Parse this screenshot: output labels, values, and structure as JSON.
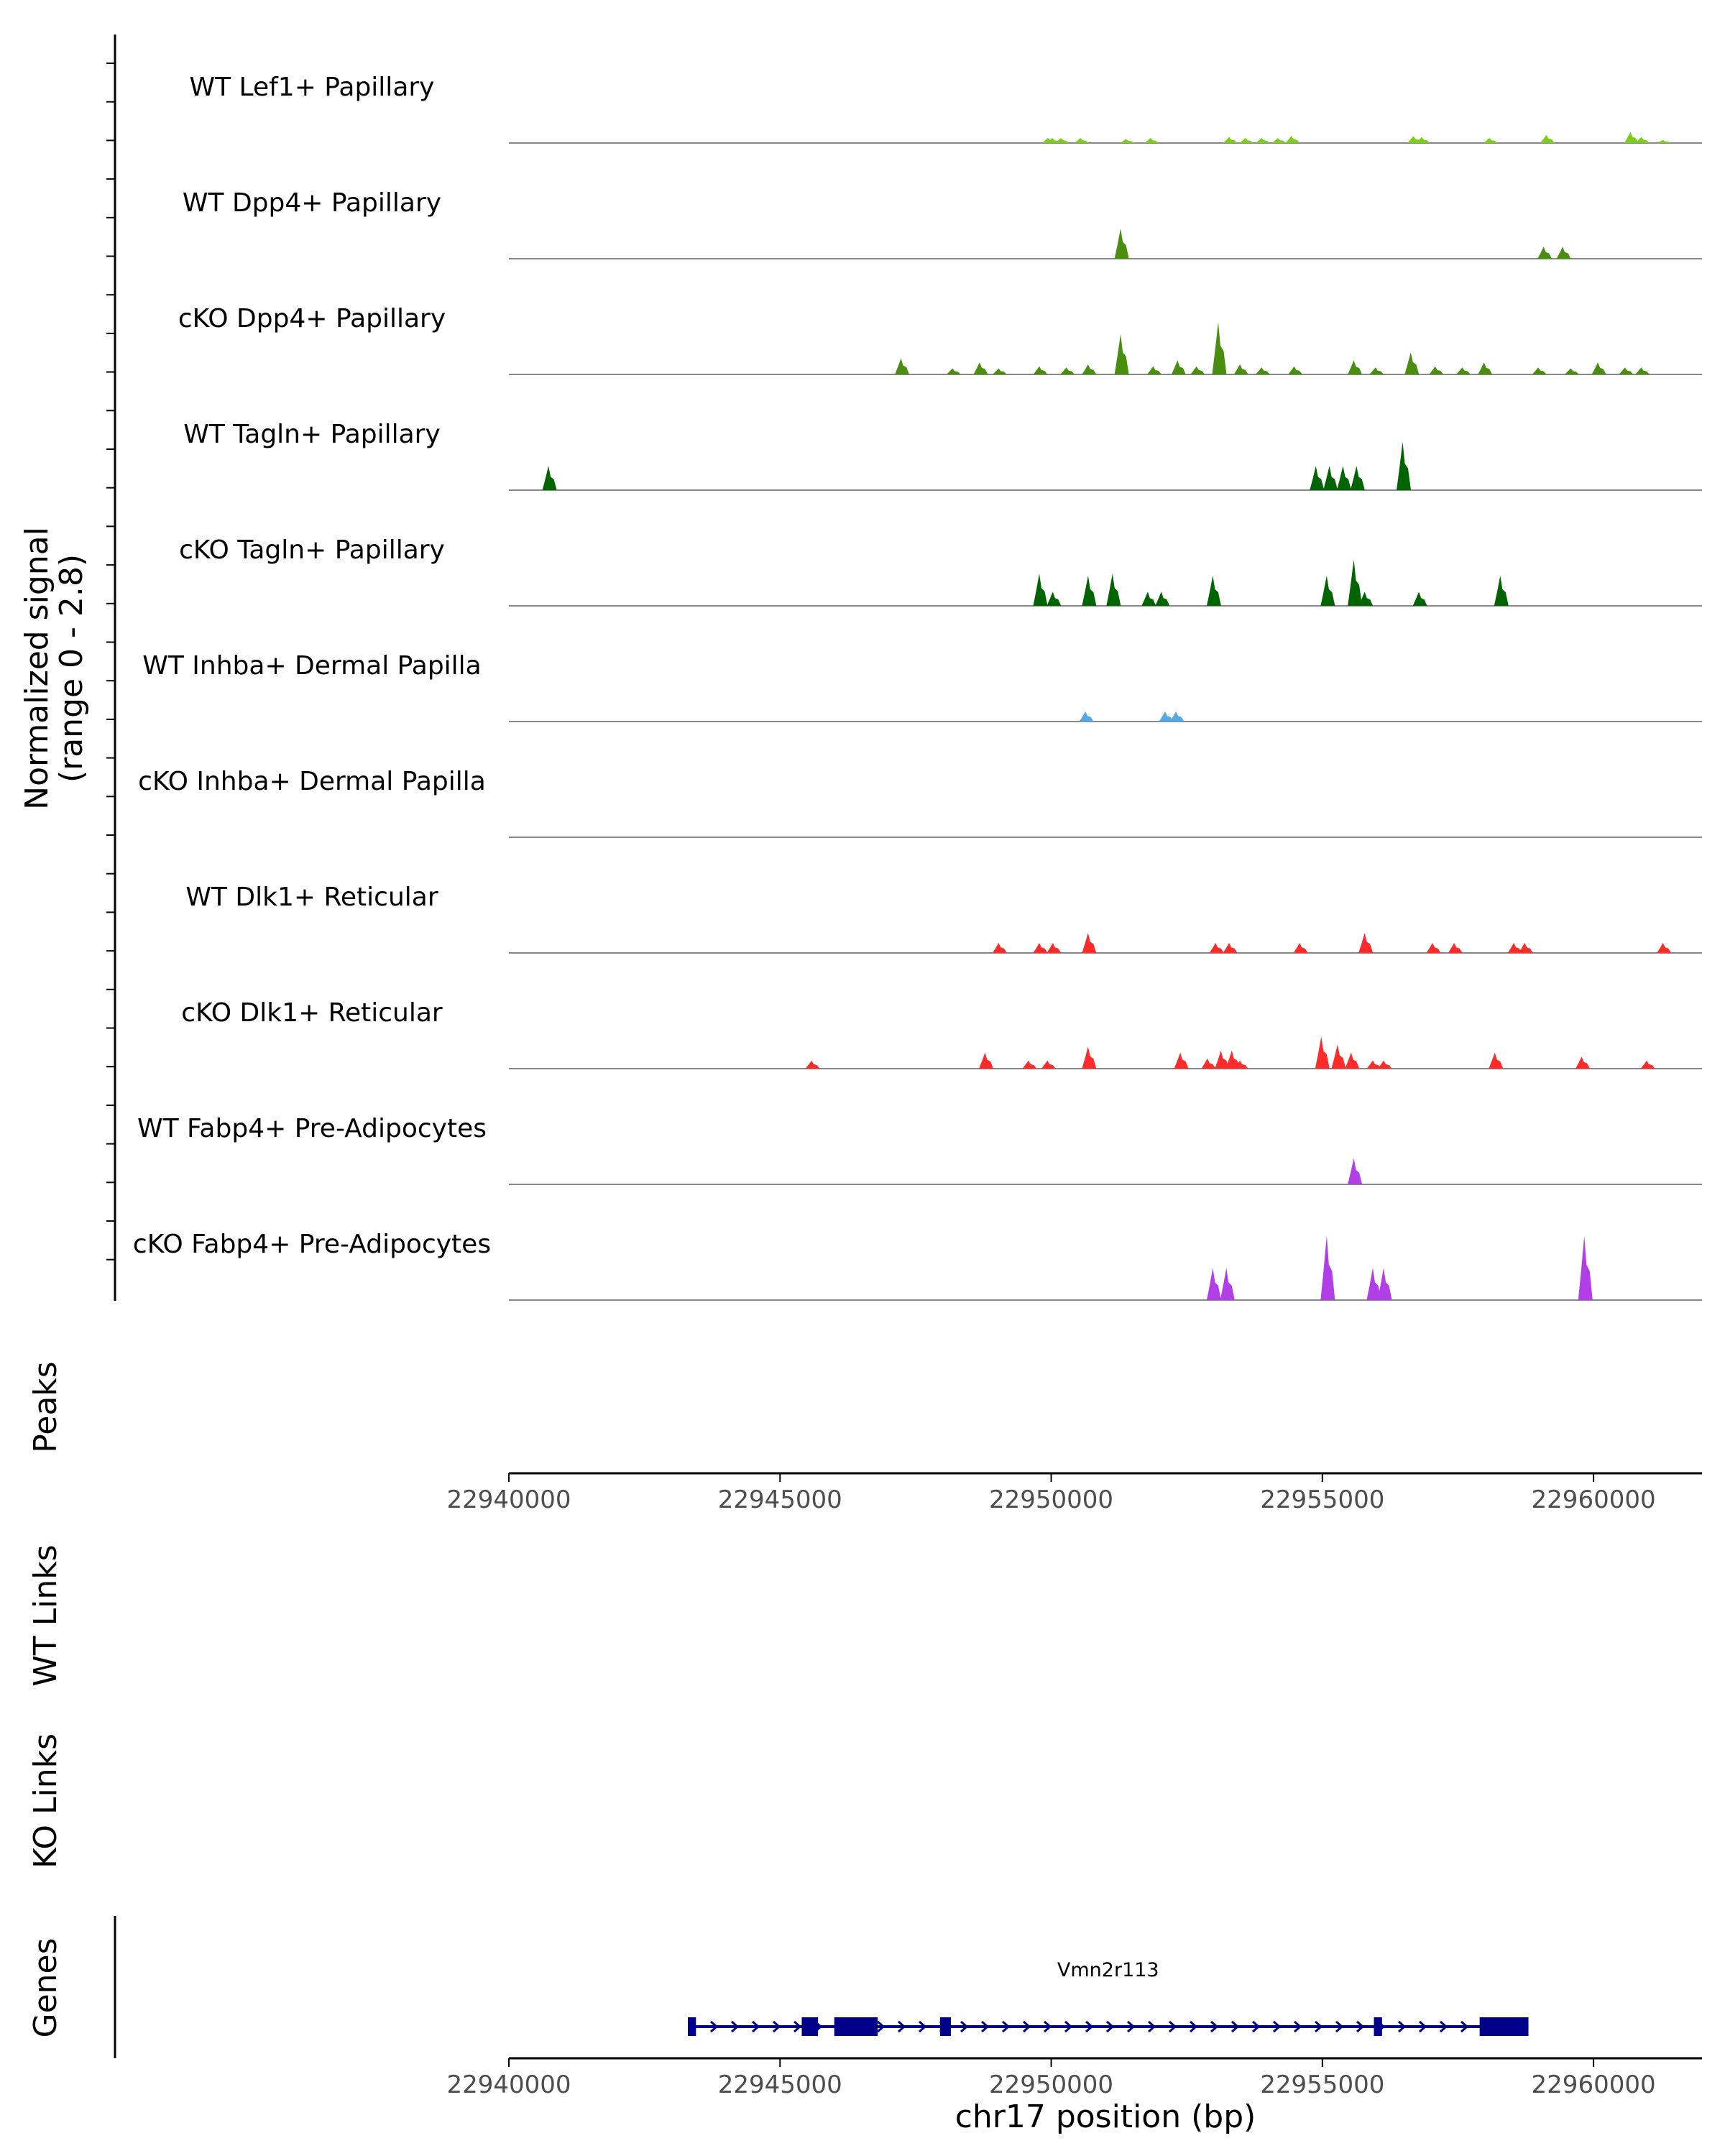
{
  "chart_data": {
    "type": "coverage_track",
    "region": {
      "chromosome": "chr17",
      "start": 22940000,
      "end": 22962000
    },
    "ylabel": "Normalized signal\n(range 0 - 2.8)",
    "ylim": [
      0,
      2.8
    ],
    "xlabel": "chr17 position (bp)",
    "x_ticks": [
      22940000,
      22945000,
      22950000,
      22955000,
      22960000
    ],
    "tracks": [
      {
        "name": "WT Lef1+ Papillary",
        "color": "#7ccd1a",
        "peaks": [
          [
            22949960,
            0.25
          ],
          [
            22950040,
            0.25
          ],
          [
            22950200,
            0.25
          ],
          [
            22950560,
            0.25
          ],
          [
            22951400,
            0.2
          ],
          [
            22951850,
            0.25
          ],
          [
            22953300,
            0.3
          ],
          [
            22953600,
            0.25
          ],
          [
            22953900,
            0.25
          ],
          [
            22954200,
            0.25
          ],
          [
            22954450,
            0.35
          ],
          [
            22956700,
            0.35
          ],
          [
            22956850,
            0.3
          ],
          [
            22958100,
            0.25
          ],
          [
            22959150,
            0.4
          ],
          [
            22960700,
            0.55
          ],
          [
            22960900,
            0.3
          ],
          [
            22961300,
            0.15
          ]
        ]
      },
      {
        "name": "WT Dpp4+ Papillary",
        "color": "#4a8e10",
        "peaks": [
          [
            22951300,
            1.5
          ],
          [
            22959100,
            0.6
          ],
          [
            22959450,
            0.6
          ]
        ]
      },
      {
        "name": "cKO Dpp4+ Papillary",
        "color": "#4a8e10",
        "peaks": [
          [
            22947250,
            0.8
          ],
          [
            22948200,
            0.3
          ],
          [
            22948700,
            0.6
          ],
          [
            22949050,
            0.3
          ],
          [
            22949800,
            0.4
          ],
          [
            22950300,
            0.35
          ],
          [
            22950700,
            0.5
          ],
          [
            22951300,
            2.0
          ],
          [
            22951900,
            0.4
          ],
          [
            22952350,
            0.7
          ],
          [
            22952700,
            0.4
          ],
          [
            22953100,
            2.6
          ],
          [
            22953500,
            0.5
          ],
          [
            22953900,
            0.35
          ],
          [
            22954500,
            0.4
          ],
          [
            22955600,
            0.7
          ],
          [
            22956000,
            0.35
          ],
          [
            22956650,
            1.1
          ],
          [
            22957100,
            0.4
          ],
          [
            22957600,
            0.35
          ],
          [
            22958000,
            0.6
          ],
          [
            22959000,
            0.35
          ],
          [
            22959600,
            0.3
          ],
          [
            22960100,
            0.6
          ],
          [
            22960600,
            0.35
          ],
          [
            22960900,
            0.35
          ]
        ]
      },
      {
        "name": "WT Tagln+ Papillary",
        "color": "#006400",
        "peaks": [
          [
            22940750,
            1.2
          ],
          [
            22954900,
            1.2
          ],
          [
            22955150,
            1.2
          ],
          [
            22955400,
            1.2
          ],
          [
            22955650,
            1.2
          ],
          [
            22956500,
            2.4
          ]
        ]
      },
      {
        "name": "cKO Tagln+ Papillary",
        "color": "#006400",
        "peaks": [
          [
            22949800,
            1.6
          ],
          [
            22950050,
            0.7
          ],
          [
            22950700,
            1.5
          ],
          [
            22951150,
            1.6
          ],
          [
            22951800,
            0.7
          ],
          [
            22952050,
            0.7
          ],
          [
            22953000,
            1.5
          ],
          [
            22955100,
            1.5
          ],
          [
            22955600,
            2.3
          ],
          [
            22955800,
            0.7
          ],
          [
            22956800,
            0.7
          ],
          [
            22958300,
            1.5
          ]
        ]
      },
      {
        "name": "WT Inhba+ Dermal Papilla",
        "color": "#56a8e5",
        "peaks": [
          [
            22950650,
            0.5
          ],
          [
            22952120,
            0.5
          ],
          [
            22952320,
            0.5
          ]
        ]
      },
      {
        "name": "cKO Inhba+ Dermal Papilla",
        "color": "#56a8e5",
        "peaks": []
      },
      {
        "name": "WT Dlk1+ Reticular",
        "color": "#ff2a2a",
        "peaks": [
          [
            22949050,
            0.5
          ],
          [
            22949800,
            0.5
          ],
          [
            22950050,
            0.5
          ],
          [
            22950700,
            1.0
          ],
          [
            22953050,
            0.5
          ],
          [
            22953300,
            0.5
          ],
          [
            22954600,
            0.5
          ],
          [
            22955800,
            1.0
          ],
          [
            22957050,
            0.5
          ],
          [
            22957450,
            0.5
          ],
          [
            22958550,
            0.5
          ],
          [
            22958750,
            0.5
          ],
          [
            22961300,
            0.5
          ]
        ]
      },
      {
        "name": "cKO Dlk1+ Reticular",
        "color": "#ff2a2a",
        "peaks": [
          [
            22945600,
            0.4
          ],
          [
            22948800,
            0.8
          ],
          [
            22949600,
            0.4
          ],
          [
            22949950,
            0.4
          ],
          [
            22950700,
            1.1
          ],
          [
            22952400,
            0.8
          ],
          [
            22952900,
            0.5
          ],
          [
            22953150,
            0.9
          ],
          [
            22953350,
            0.9
          ],
          [
            22953500,
            0.4
          ],
          [
            22955000,
            1.6
          ],
          [
            22955300,
            1.2
          ],
          [
            22955550,
            0.8
          ],
          [
            22955950,
            0.4
          ],
          [
            22956150,
            0.4
          ],
          [
            22958200,
            0.8
          ],
          [
            22959800,
            0.6
          ],
          [
            22961000,
            0.4
          ]
        ]
      },
      {
        "name": "WT Fabp4+ Pre-Adipocytes",
        "color": "#b23ee8",
        "peaks": [
          [
            22955600,
            1.3
          ]
        ]
      },
      {
        "name": "cKO Fabp4+ Pre-Adipocytes",
        "color": "#b23ee8",
        "peaks": [
          [
            22953000,
            1.6
          ],
          [
            22953250,
            1.6
          ],
          [
            22955100,
            3.2
          ],
          [
            22955950,
            1.6
          ],
          [
            22956150,
            1.6
          ],
          [
            22959850,
            3.2
          ]
        ]
      }
    ],
    "side_tracks": {
      "peaks_label": "Peaks",
      "wt_links_label": "WT Links",
      "ko_links_label": "KO Links",
      "genes_label": "Genes"
    },
    "gene": {
      "name": "Vmn2r113",
      "strand": "+",
      "start": 22943300,
      "end": 22958800,
      "color": "#00008b",
      "exons": [
        [
          22943300,
          22943450
        ],
        [
          22945400,
          22945700
        ],
        [
          22946000,
          22946800
        ],
        [
          22947950,
          22948150
        ],
        [
          22955950,
          22956100
        ],
        [
          22957900,
          22958800
        ]
      ]
    }
  }
}
